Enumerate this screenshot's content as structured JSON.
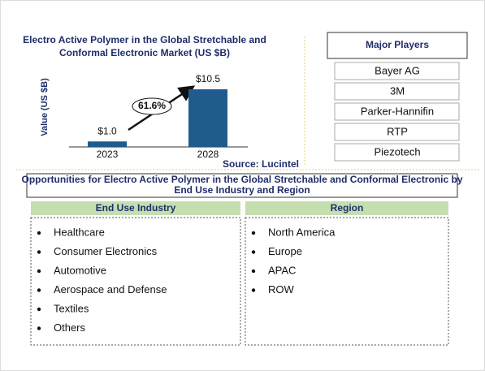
{
  "chart_data": {
    "type": "bar",
    "title": [
      "Electro Active Polymer in the Global Stretchable and",
      "Conformal Electronic Market (US $B)"
    ],
    "y_label": "Value (US $B)",
    "categories": [
      "2023",
      "2028"
    ],
    "values": [
      1.0,
      10.5
    ],
    "value_labels": [
      "$1.0",
      "$10.5"
    ],
    "annotation": "61.6%",
    "source": "Source: Lucintel",
    "color": "#1f5b8c"
  },
  "major_players": {
    "title": "Major Players",
    "items": [
      "Bayer AG",
      "3M",
      "Parker-Hannifin",
      "RTP",
      "Piezotech"
    ]
  },
  "opportunities": {
    "title": [
      "Opportunities for Electro Active Polymer in the Global Stretchable and Conformal Electronic by",
      "End Use Industry and Region"
    ],
    "end_use": {
      "title": "End Use Industry",
      "items": [
        "Healthcare",
        "Consumer Electronics",
        "Automotive",
        "Aerospace and Defense",
        "Textiles",
        "Others"
      ]
    },
    "region": {
      "title": "Region",
      "items": [
        "North America",
        "Europe",
        "APAC",
        "ROW"
      ]
    }
  }
}
